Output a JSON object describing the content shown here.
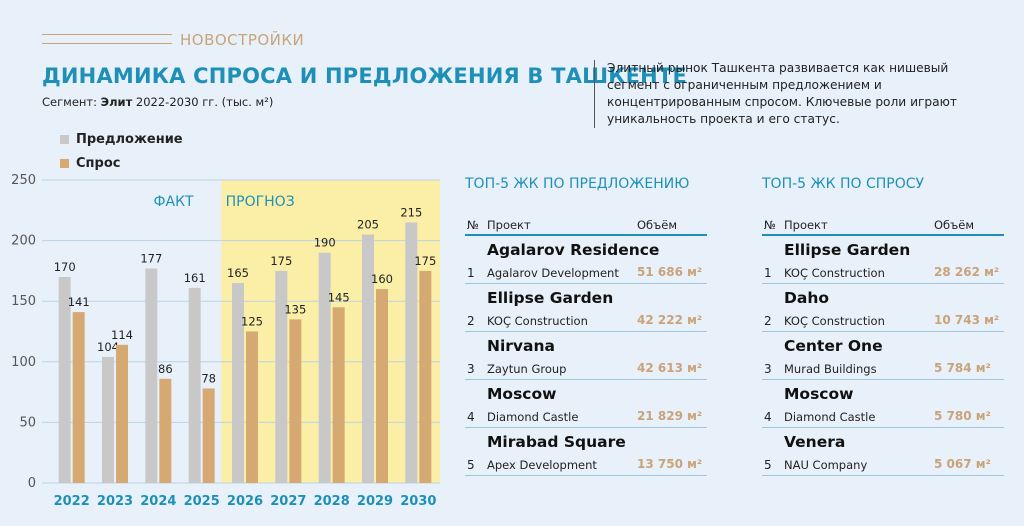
{
  "header": {
    "kicker": "НОВОСТРОЙКИ",
    "title": "ДИНАМИКА СПРОСА И ПРЕДЛОЖЕНИЯ В ТАШКЕНТЕ",
    "subtitle_prefix": "Сегмент: ",
    "subtitle_segment": "Элит",
    "subtitle_suffix": " 2022-2030 гг. (тыс. м²)",
    "note": "Элитный рынок Ташкента развивается как нишевый сегмент с ограниченным предложением и концентрированным спросом. Ключевые роли играют уникальность проекта и его статус."
  },
  "legend": {
    "supply": "Предложение",
    "demand": "Спрос"
  },
  "colors": {
    "supply": "#c8c8c8",
    "demand": "#d6a872",
    "forecast_bg": "#fbeea6",
    "accent": "#1e90b8",
    "gold": "#c9a37a"
  },
  "chart_data": {
    "type": "bar",
    "categories": [
      "2022",
      "2023",
      "2024",
      "2025",
      "2026",
      "2027",
      "2028",
      "2029",
      "2030"
    ],
    "series": [
      {
        "name": "Предложение",
        "values": [
          170,
          104,
          177,
          161,
          165,
          175,
          190,
          205,
          215
        ]
      },
      {
        "name": "Спрос",
        "values": [
          141,
          114,
          86,
          78,
          125,
          135,
          145,
          160,
          175
        ]
      }
    ],
    "ylim": [
      0,
      250
    ],
    "yticks": [
      "0",
      "50",
      "100",
      "150",
      "200",
      "250"
    ],
    "fact_label": "ФАКТ",
    "forecast_label": "ПРОГНОЗ",
    "forecast_start_index": 4,
    "grid": true,
    "legend_position": "top-left"
  },
  "top_supply": {
    "title": "ТОП-5 ЖК ПО ПРЕДЛОЖЕНИЮ",
    "head": {
      "n": "№",
      "project": "Проект",
      "volume": "Объём"
    },
    "items": [
      {
        "idx": "1",
        "name": "Agalarov Residence",
        "dev": "Agalarov Development",
        "vol": "51 686 м²"
      },
      {
        "idx": "2",
        "name": "Ellipse Garden",
        "dev": "KOÇ Construction",
        "vol": "42 222 м²"
      },
      {
        "idx": "3",
        "name": "Nirvana",
        "dev": "Zaytun Group",
        "vol": "42 613 м²"
      },
      {
        "idx": "4",
        "name": "Moscow",
        "dev": "Diamond Castle",
        "vol": "21 829 м²"
      },
      {
        "idx": "5",
        "name": "Mirabad Square",
        "dev": "Apex Development",
        "vol": "13 750 м²"
      }
    ]
  },
  "top_demand": {
    "title": "ТОП-5 ЖК ПО СПРОСУ",
    "head": {
      "n": "№",
      "project": "Проект",
      "volume": "Объём"
    },
    "items": [
      {
        "idx": "1",
        "name": "Ellipse Garden",
        "dev": "KOÇ Construction",
        "vol": "28 262 м²"
      },
      {
        "idx": "2",
        "name": "Daho",
        "dev": "KOÇ Construction",
        "vol": "10 743 м²"
      },
      {
        "idx": "3",
        "name": "Center One",
        "dev": "Murad Buildings",
        "vol": "5 784 м²"
      },
      {
        "idx": "4",
        "name": "Moscow",
        "dev": "Diamond Castle",
        "vol": "5 780 м²"
      },
      {
        "idx": "5",
        "name": "Venera",
        "dev": "NAU Company",
        "vol": "5 067 м²"
      }
    ]
  }
}
